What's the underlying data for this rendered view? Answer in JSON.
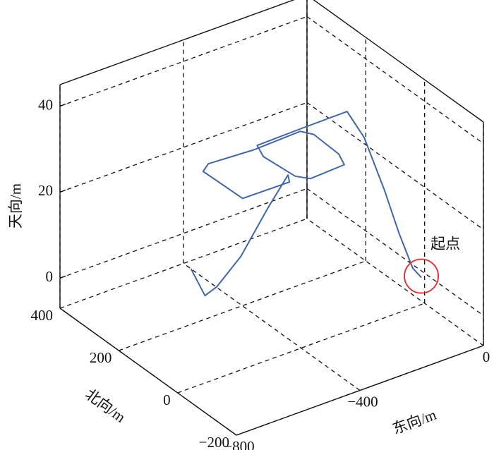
{
  "chart_data": {
    "type": "line3d",
    "xlabel": "东向/m",
    "ylabel": "北向/m",
    "zlabel": "天向/m",
    "annotation": "起点",
    "color": "#3f66a8",
    "annotation_color": "#e3262a",
    "x": [
      -20,
      -49,
      -89,
      -122,
      -110,
      -95,
      -240,
      -390,
      -410,
      -400,
      -375,
      -260,
      -240,
      -235,
      -255,
      -411,
      -550,
      -584,
      -580,
      -430,
      -412,
      -450,
      -500,
      -540,
      -540,
      -490
    ],
    "y": [
      -10,
      -11,
      -6,
      8,
      90,
      164,
      163,
      160,
      118,
      20,
      -5,
      0,
      40,
      130,
      155,
      150,
      158,
      140,
      10,
      8,
      32,
      60,
      100,
      140,
      180,
      280
    ],
    "z": [
      0,
      3,
      12,
      22,
      30,
      32,
      32,
      32,
      32,
      32,
      32,
      32,
      32,
      32,
      32,
      32,
      32,
      32,
      32,
      32,
      32,
      24,
      12,
      4,
      0,
      0
    ],
    "xlim": [
      -800,
      0
    ],
    "ylim": [
      -200,
      400
    ],
    "zlim": [
      -7,
      45
    ],
    "xticks": [
      {
        "value": -800,
        "label": "−800"
      },
      {
        "value": -400,
        "label": "−400"
      },
      0
    ],
    "yticks": [
      {
        "value": -200,
        "label": "−200"
      },
      0,
      200,
      400
    ],
    "zticks": [
      0,
      20,
      40
    ],
    "grid": true
  }
}
